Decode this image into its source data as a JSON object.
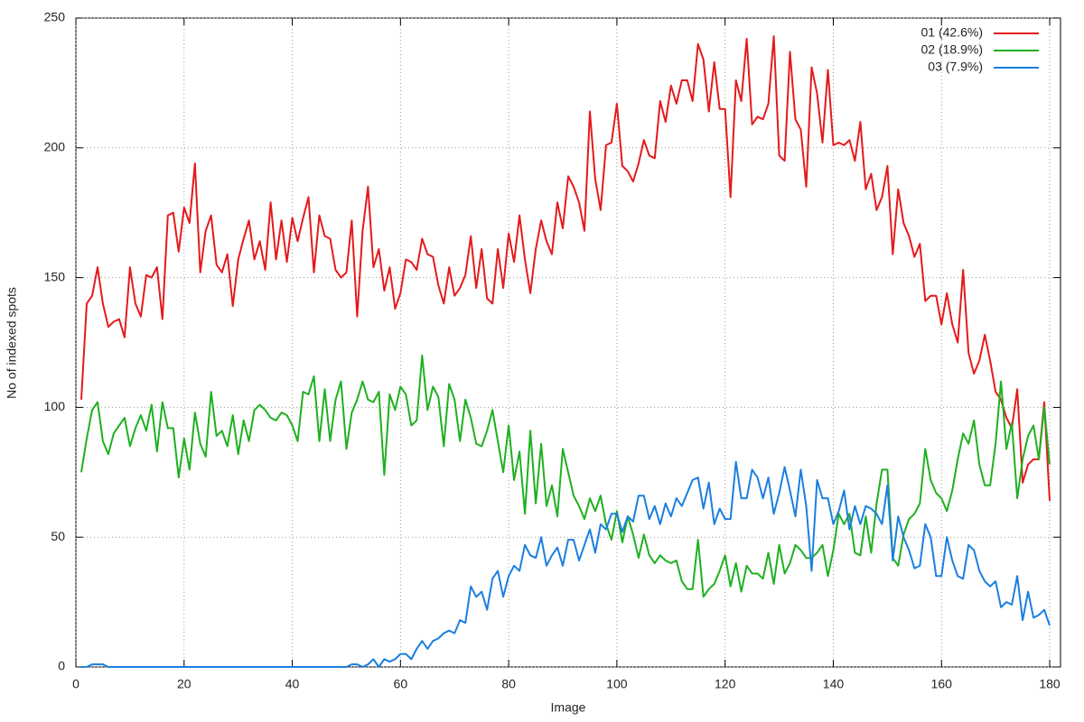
{
  "chart_data": {
    "type": "line",
    "xlabel": "Image",
    "ylabel": "No of indexed spots",
    "xlim": [
      0,
      182
    ],
    "ylim": [
      0,
      250
    ],
    "xticks": [
      0,
      20,
      40,
      60,
      80,
      100,
      120,
      140,
      160,
      180
    ],
    "yticks": [
      0,
      50,
      100,
      150,
      200,
      250
    ],
    "grid": true,
    "legend": "top-right",
    "x": [
      1,
      2,
      3,
      4,
      5,
      6,
      7,
      8,
      9,
      10,
      11,
      12,
      13,
      14,
      15,
      16,
      17,
      18,
      19,
      20,
      21,
      22,
      23,
      24,
      25,
      26,
      27,
      28,
      29,
      30,
      31,
      32,
      33,
      34,
      35,
      36,
      37,
      38,
      39,
      40,
      41,
      42,
      43,
      44,
      45,
      46,
      47,
      48,
      49,
      50,
      51,
      52,
      53,
      54,
      55,
      56,
      57,
      58,
      59,
      60,
      61,
      62,
      63,
      64,
      65,
      66,
      67,
      68,
      69,
      70,
      71,
      72,
      73,
      74,
      75,
      76,
      77,
      78,
      79,
      80,
      81,
      82,
      83,
      84,
      85,
      86,
      87,
      88,
      89,
      90,
      91,
      92,
      93,
      94,
      95,
      96,
      97,
      98,
      99,
      100,
      101,
      102,
      103,
      104,
      105,
      106,
      107,
      108,
      109,
      110,
      111,
      112,
      113,
      114,
      115,
      116,
      117,
      118,
      119,
      120,
      121,
      122,
      123,
      124,
      125,
      126,
      127,
      128,
      129,
      130,
      131,
      132,
      133,
      134,
      135,
      136,
      137,
      138,
      139,
      140,
      141,
      142,
      143,
      144,
      145,
      146,
      147,
      148,
      149,
      150,
      151,
      152,
      153,
      154,
      155,
      156,
      157,
      158,
      159,
      160,
      161,
      162,
      163,
      164,
      165,
      166,
      167,
      168,
      169,
      170,
      171,
      172,
      173,
      174,
      175,
      176,
      177,
      178,
      179,
      180
    ],
    "series": [
      {
        "name": "01 (42.6%)",
        "color": "#e41a1c",
        "values": [
          103,
          140,
          143,
          154,
          140,
          131,
          133,
          134,
          127,
          154,
          140,
          135,
          151,
          150,
          154,
          134,
          174,
          175,
          160,
          177,
          171,
          194,
          152,
          168,
          174,
          155,
          152,
          159,
          139,
          157,
          165,
          172,
          157,
          164,
          153,
          179,
          157,
          172,
          156,
          173,
          164,
          173,
          181,
          152,
          174,
          166,
          165,
          153,
          150,
          152,
          172,
          135,
          168,
          185,
          154,
          161,
          145,
          154,
          138,
          144,
          157,
          156,
          153,
          165,
          159,
          158,
          147,
          140,
          154,
          143,
          146,
          151,
          166,
          146,
          161,
          142,
          140,
          161,
          146,
          167,
          156,
          174,
          157,
          144,
          161,
          172,
          164,
          159,
          179,
          169,
          189,
          185,
          179,
          168,
          214,
          188,
          176,
          201,
          202,
          217,
          193,
          191,
          187,
          194,
          203,
          197,
          196,
          218,
          210,
          224,
          217,
          226,
          226,
          218,
          240,
          234,
          214,
          233,
          215,
          215,
          181,
          226,
          218,
          242,
          209,
          212,
          211,
          217,
          243,
          197,
          195,
          237,
          211,
          207,
          185,
          231,
          221,
          202,
          230,
          201,
          202,
          201,
          203,
          195,
          210,
          184,
          190,
          176,
          181,
          193,
          159,
          184,
          171,
          166,
          158,
          163,
          141,
          143,
          143,
          132,
          144,
          132,
          125,
          153,
          121,
          113,
          118,
          128,
          118,
          106,
          103,
          96,
          92,
          107,
          71,
          78,
          80,
          80,
          102,
          64
        ]
      },
      {
        "name": "02 (18.9%)",
        "color": "#1fb01f",
        "values": [
          75,
          88,
          99,
          102,
          87,
          82,
          90,
          93,
          96,
          85,
          92,
          97,
          91,
          101,
          83,
          102,
          92,
          92,
          73,
          88,
          76,
          98,
          86,
          81,
          106,
          89,
          91,
          85,
          97,
          82,
          95,
          87,
          99,
          101,
          99,
          96,
          95,
          98,
          97,
          93,
          87,
          106,
          105,
          112,
          87,
          107,
          87,
          103,
          110,
          84,
          98,
          103,
          110,
          103,
          102,
          106,
          74,
          105,
          99,
          108,
          105,
          93,
          95,
          120,
          99,
          108,
          104,
          85,
          109,
          103,
          87,
          103,
          96,
          86,
          85,
          91,
          99,
          87,
          75,
          93,
          72,
          83,
          59,
          91,
          63,
          86,
          62,
          70,
          58,
          84,
          75,
          66,
          62,
          57,
          65,
          60,
          66,
          55,
          49,
          60,
          48,
          58,
          51,
          42,
          51,
          43,
          40,
          43,
          41,
          40,
          41,
          33,
          30,
          30,
          49,
          27,
          30,
          32,
          37,
          43,
          31,
          40,
          29,
          39,
          36,
          36,
          34,
          44,
          32,
          47,
          36,
          40,
          47,
          45,
          42,
          42,
          44,
          47,
          35,
          45,
          59,
          55,
          59,
          44,
          43,
          58,
          44,
          63,
          76,
          76,
          42,
          39,
          51,
          57,
          59,
          63,
          84,
          72,
          67,
          65,
          60,
          68,
          80,
          90,
          86,
          95,
          78,
          70,
          70,
          86,
          110,
          84,
          94,
          65,
          80,
          89,
          93,
          80,
          100,
          78
        ]
      },
      {
        "name": "03 (7.9%)",
        "color": "#1a7fe0",
        "values": [
          0,
          0,
          1,
          1,
          1,
          0,
          0,
          0,
          0,
          0,
          0,
          0,
          0,
          0,
          0,
          0,
          0,
          0,
          0,
          0,
          0,
          0,
          0,
          0,
          0,
          0,
          0,
          0,
          0,
          0,
          0,
          0,
          0,
          0,
          0,
          0,
          0,
          0,
          0,
          0,
          0,
          0,
          0,
          0,
          0,
          0,
          0,
          0,
          0,
          0,
          1,
          1,
          0,
          1,
          3,
          0,
          3,
          2,
          3,
          5,
          5,
          3,
          7,
          10,
          7,
          10,
          11,
          13,
          14,
          13,
          18,
          17,
          31,
          27,
          29,
          22,
          34,
          37,
          27,
          35,
          39,
          37,
          47,
          43,
          42,
          50,
          39,
          43,
          46,
          39,
          49,
          49,
          41,
          47,
          53,
          44,
          55,
          53,
          59,
          59,
          52,
          58,
          56,
          66,
          66,
          57,
          62,
          55,
          63,
          58,
          65,
          62,
          67,
          72,
          73,
          61,
          71,
          55,
          61,
          57,
          57,
          79,
          65,
          65,
          76,
          73,
          65,
          73,
          59,
          67,
          77,
          68,
          58,
          76,
          62,
          37,
          72,
          65,
          65,
          55,
          60,
          68,
          53,
          62,
          55,
          62,
          61,
          59,
          55,
          70,
          41,
          58,
          50,
          45,
          38,
          39,
          55,
          50,
          35,
          35,
          50,
          41,
          35,
          34,
          47,
          45,
          37,
          33,
          31,
          33,
          23,
          25,
          24,
          35,
          18,
          29,
          19,
          20,
          22,
          16
        ]
      }
    ]
  }
}
